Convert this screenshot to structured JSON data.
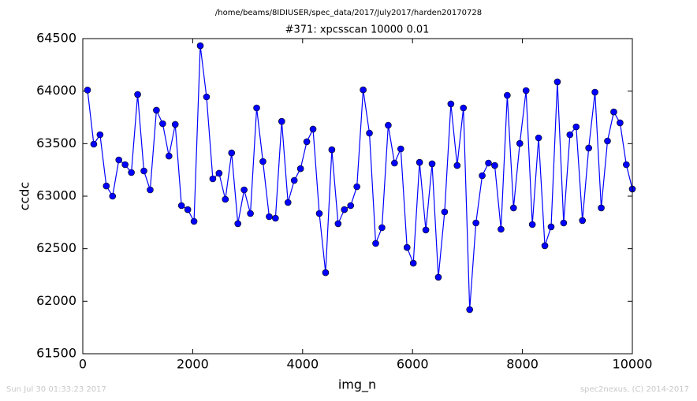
{
  "chart_data": {
    "type": "line",
    "title": "/home/beams/8IDIUSER/spec_data/2017/July2017/harden20170728",
    "subtitle": "#371: xpcsscan 10000 0.01",
    "x_label": "img_n",
    "y_label": "ccdc",
    "footer_left": "Sun Jul 30 01:33:23 2017",
    "footer_right": "spec2nexus, (C) 2014-2017",
    "color": "#0000ff",
    "x": [
      86,
      200,
      314,
      428,
      542,
      656,
      770,
      884,
      998,
      1112,
      1226,
      1340,
      1454,
      1568,
      1682,
      1796,
      1910,
      2024,
      2138,
      2252,
      2366,
      2480,
      2594,
      2708,
      2822,
      2936,
      3050,
      3164,
      3278,
      3392,
      3506,
      3620,
      3734,
      3848,
      3962,
      4076,
      4190,
      4304,
      4418,
      4532,
      4646,
      4760,
      4874,
      4988,
      5102,
      5216,
      5330,
      5444,
      5558,
      5672,
      5786,
      5900,
      6014,
      6128,
      6242,
      6356,
      6470,
      6584,
      6698,
      6812,
      6926,
      7040,
      7154,
      7268,
      7382,
      7496,
      7610,
      7724,
      7838,
      7952,
      8066,
      8180,
      8294,
      8408,
      8522,
      8636,
      8750,
      8864,
      8978,
      9092,
      9206,
      9320,
      9434,
      9548,
      9662,
      9776,
      9890,
      10000
    ],
    "values": [
      64010,
      63495,
      63585,
      63097,
      63000,
      63345,
      63300,
      63225,
      63968,
      63240,
      63060,
      63818,
      63690,
      63382,
      63683,
      62910,
      62872,
      62760,
      64432,
      63945,
      63165,
      63218,
      62970,
      63412,
      62738,
      63060,
      62835,
      63840,
      63330,
      62805,
      62790,
      63712,
      62940,
      63150,
      63262,
      63518,
      63638,
      62835,
      62272,
      63442,
      62738,
      62872,
      62910,
      63090,
      64012,
      63600,
      62550,
      62700,
      63675,
      63315,
      63450,
      62512,
      62362,
      63322,
      62678,
      63308,
      62228,
      62850,
      63878,
      63292,
      63840,
      61920,
      62745,
      63195,
      63315,
      63292,
      62685,
      63960,
      62888,
      63502,
      64005,
      62730,
      63555,
      62528,
      62708,
      64088,
      62745,
      63585,
      63660,
      62768,
      63458,
      63990,
      62888,
      63525,
      63802,
      63698,
      63300,
      63068
    ],
    "xlim": [
      0,
      10000
    ],
    "xticks": [
      0,
      2000,
      4000,
      6000,
      8000,
      10000
    ],
    "ylim": [
      61500,
      64500
    ],
    "yticks": [
      61500,
      62000,
      62500,
      63000,
      63500,
      64000,
      64500
    ]
  }
}
